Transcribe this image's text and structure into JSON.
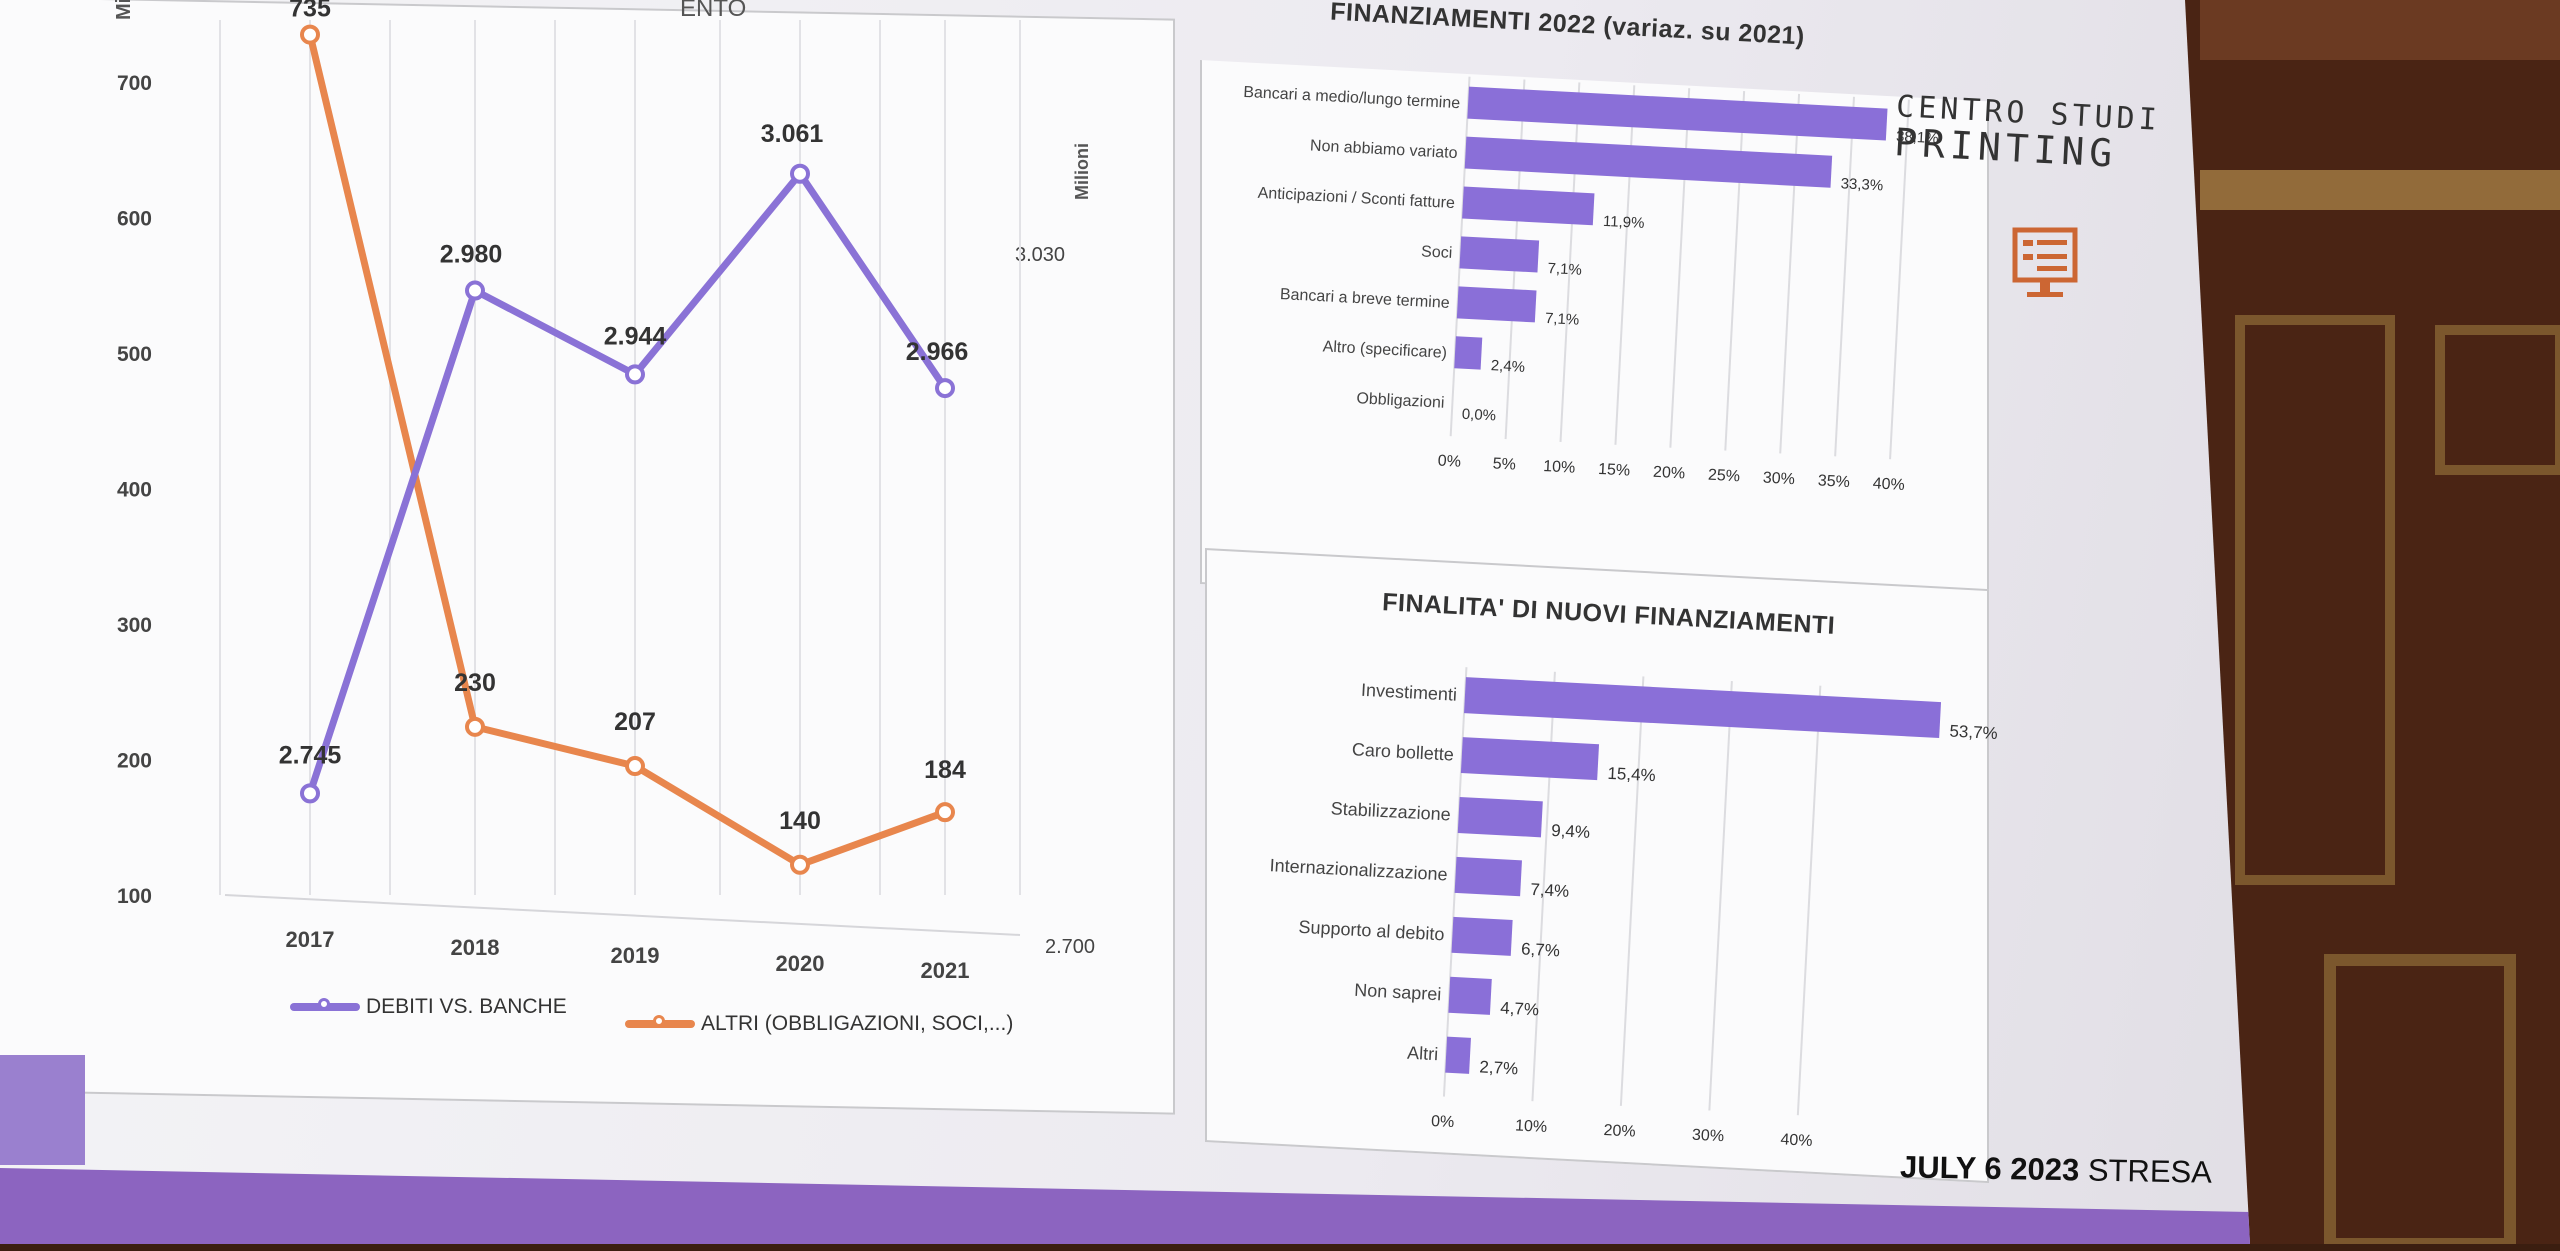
{
  "left_chart_title_fragment": "ENTO",
  "left_axis_unit_fragment": "Mili",
  "right_axis_unit": "Milioni",
  "right_axis_ticks": [
    "3.030",
    "2.700"
  ],
  "legend": {
    "series1": "DEBITI VS. BANCHE",
    "series2": "ALTRI (OBBLIGAZIONI, SOCI,...)"
  },
  "logo": {
    "line1": "CENTRO STUDI",
    "line2": "PRINTING"
  },
  "footer": {
    "bold": "JULY 6 2023",
    "rest": " STRESA"
  },
  "colors": {
    "purple": "#8a72d6",
    "orange": "#e8864d",
    "bar": "#8a6fd8"
  },
  "chart_data": [
    {
      "type": "line",
      "categories": [
        "2017",
        "2018",
        "2019",
        "2020",
        "2021"
      ],
      "y_left_ticks": [
        "700",
        "600",
        "500",
        "400",
        "300",
        "200",
        "100"
      ],
      "ylim_left": [
        100,
        750
      ],
      "series": [
        {
          "name": "DEBITI VS. BANCHE",
          "axis": "right",
          "labels": [
            "2.745",
            "2.980",
            "2.944",
            "3.061",
            "2.966"
          ],
          "plot_left_equiv": [
            175,
            552,
            496,
            650,
            497
          ]
        },
        {
          "name": "ALTRI (OBBLIGAZIONI, SOCI,...)",
          "axis": "left",
          "values": [
            735,
            230,
            207,
            140,
            184
          ],
          "labels": [
            "735",
            "230",
            "207",
            "140",
            "184"
          ]
        }
      ]
    },
    {
      "type": "bar",
      "orientation": "horizontal",
      "title": "FINANZIAMENTI 2022 (variaz. su 2021)",
      "categories": [
        "Bancari a medio/lungo termine",
        "Non abbiamo variato",
        "Anticipazioni / Sconti fatture",
        "Soci",
        "Bancari a breve termine",
        "Altro (specificare)",
        "Obbligazioni"
      ],
      "values": [
        38.1,
        33.3,
        11.9,
        7.1,
        7.1,
        2.4,
        0.0
      ],
      "labels": [
        "38,1%",
        "33,3%",
        "11,9%",
        "7,1%",
        "7,1%",
        "2,4%",
        "0,0%"
      ],
      "x_ticks": [
        "0%",
        "5%",
        "10%",
        "15%",
        "20%",
        "25%",
        "30%",
        "35%",
        "40%"
      ],
      "xlim": [
        0,
        40
      ]
    },
    {
      "type": "bar",
      "orientation": "horizontal",
      "title": "FINALITA' DI NUOVI FINANZIAMENTI",
      "categories": [
        "Investimenti",
        "Caro bollette",
        "Stabilizzazione",
        "Internazionalizzazione",
        "Supporto al debito",
        "Non saprei",
        "Altri"
      ],
      "values": [
        53.7,
        15.4,
        9.4,
        7.4,
        6.7,
        4.7,
        2.7
      ],
      "labels": [
        "53,7%",
        "15,4%",
        "9,4%",
        "7,4%",
        "6,7%",
        "4,7%",
        "2,7%"
      ],
      "x_ticks": [
        "0%",
        "10%",
        "20%",
        "30%",
        "40%"
      ],
      "xlim": [
        0,
        57
      ]
    }
  ]
}
